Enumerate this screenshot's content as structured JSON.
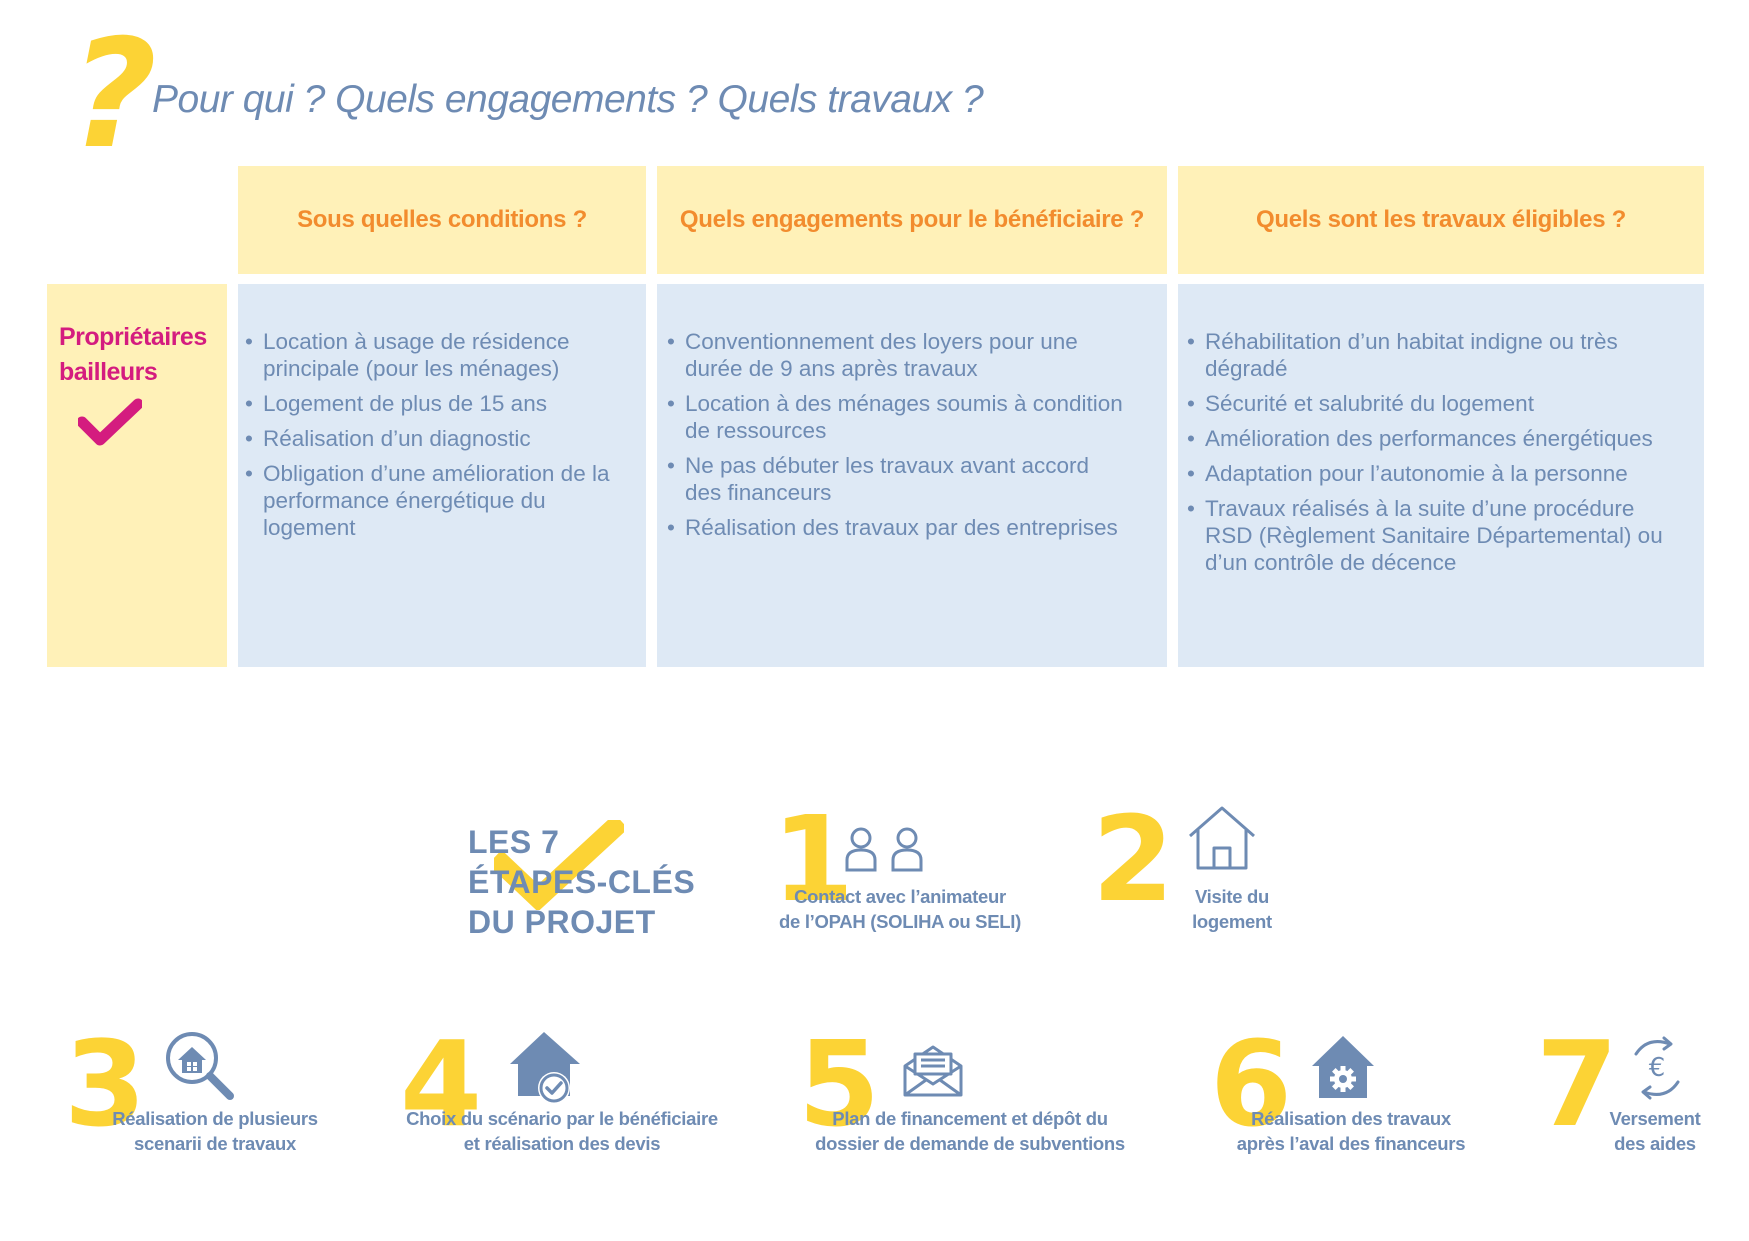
{
  "header": {
    "question_mark": "?",
    "title": "Pour qui ? Quels engagements ? Quels travaux ?"
  },
  "table": {
    "columns": [
      "Sous quelles conditions ?",
      "Quels engagements pour le bénéficiaire ?",
      "Quels sont les travaux éligibles ?"
    ],
    "row_label_line1": "Propriétaires",
    "row_label_line2": "bailleurs",
    "conditions": [
      "Location à usage de résidence principale (pour les ménages)",
      "Logement de plus de 15 ans",
      "Réalisation d’un diagnostic",
      "Obligation d’une amélioration de la performance énergétique du logement"
    ],
    "engagements": [
      "Conventionnement des loyers pour une durée de 9 ans après travaux",
      "Location à des ménages soumis à condition de ressources",
      "Ne pas débuter les travaux avant accord des financeurs",
      "Réalisation des travaux par des entreprises"
    ],
    "travaux": [
      "Réhabilitation d’un habitat indigne ou très dégradé",
      "Sécurité et salubrité du logement",
      "Amélioration des performances énergétiques",
      "Adaptation pour l’autonomie à la personne",
      "Travaux réalisés à la suite d’une procédure RSD (Règlement Sanitaire Départemental) ou d’un contrôle de décence"
    ]
  },
  "steps_section": {
    "title_line1": "LES 7",
    "title_line2": "ÉTAPES-CLÉS",
    "title_line3": "DU PROJET",
    "steps": [
      {
        "num": "1",
        "line1": "Contact avec l’animateur",
        "line2": "de l’OPAH (SOLIHA ou SELI)",
        "icon": "people-icon"
      },
      {
        "num": "2",
        "line1": "Visite du",
        "line2": "logement",
        "icon": "house-icon"
      },
      {
        "num": "3",
        "line1": "Réalisation de plusieurs",
        "line2": "scenarii de travaux",
        "icon": "house-search-icon"
      },
      {
        "num": "4",
        "line1": "Choix du scénario par le bénéficiaire",
        "line2": "et réalisation des devis",
        "icon": "house-check-icon"
      },
      {
        "num": "5",
        "line1": "Plan de financement et dépôt du",
        "line2": "dossier de demande de subventions",
        "icon": "envelope-icon"
      },
      {
        "num": "6",
        "line1": "Réalisation des travaux",
        "line2": "après l’aval des financeurs",
        "icon": "house-gear-icon"
      },
      {
        "num": "7",
        "line1": "Versement",
        "line2": "des aides",
        "icon": "euro-exchange-icon"
      }
    ]
  },
  "colors": {
    "yellow": "#fcd335",
    "light_yellow": "#fff1b8",
    "light_blue": "#dee9f5",
    "blue_text": "#6e8bb3",
    "orange": "#f28c2e",
    "magenta": "#d41c7f"
  }
}
